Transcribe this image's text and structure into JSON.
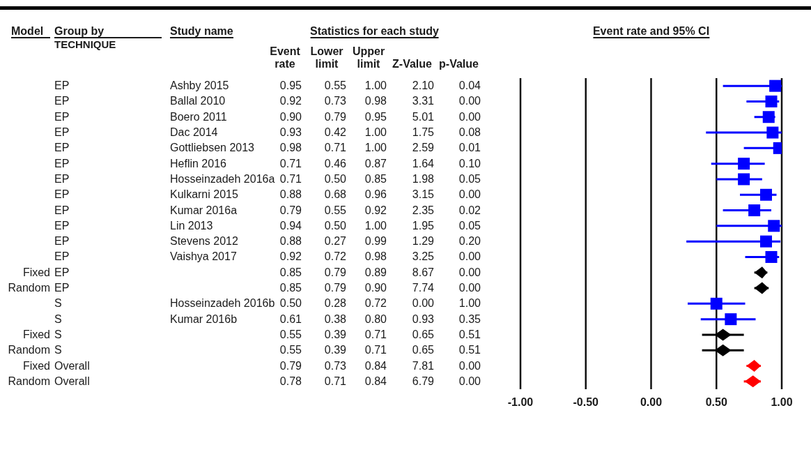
{
  "chart_data": [
    {
      "type": "other",
      "title": "Model",
      "categories": [
        null,
        null,
        null,
        null,
        null,
        null,
        null,
        null,
        null,
        null,
        null,
        null,
        "Fixed",
        "Random",
        null,
        null,
        "Fixed",
        "Random",
        "Fixed",
        "Random"
      ]
    },
    {
      "type": "heatmap",
      "title": "Statistics for each study",
      "ylabel": "Study name",
      "y2label": "Group by\nTECHNIQUE",
      "data_labels": true,
      "categories": [
        "Event\nrate",
        "Lower\nlimit",
        "Upper\nlimit",
        "Z-Value",
        "p-Value"
      ],
      "y_categories": [
        "Ashby 2015",
        "Ballal 2010",
        "Boero 2011",
        "Dac 2014",
        "Gottliebsen 2013",
        "Heflin 2016",
        "Hosseinzadeh 2016a",
        "Kulkarni 2015",
        "Kumar 2016a",
        "Lin 2013",
        "Stevens 2012",
        "Vaishya 2017",
        null,
        null,
        "Hosseinzadeh 2016b",
        "Kumar 2016b",
        null,
        null,
        null,
        null
      ],
      "y2_categories": [
        "EP",
        "EP",
        "EP",
        "EP",
        "EP",
        "EP",
        "EP",
        "EP",
        "EP",
        "EP",
        "EP",
        "EP",
        "EP",
        "EP",
        "S",
        "S",
        "S",
        "S",
        "Overall",
        "Overall"
      ],
      "cells": [
        [
          0.95,
          0.55,
          1.0,
          2.1,
          0.04
        ],
        [
          0.92,
          0.73,
          0.98,
          3.31,
          0.0
        ],
        [
          0.9,
          0.79,
          0.95,
          5.01,
          0.0
        ],
        [
          0.93,
          0.42,
          1.0,
          1.75,
          0.08
        ],
        [
          0.98,
          0.71,
          1.0,
          2.59,
          0.01
        ],
        [
          0.71,
          0.46,
          0.87,
          1.64,
          0.1
        ],
        [
          0.71,
          0.5,
          0.85,
          1.98,
          0.05
        ],
        [
          0.88,
          0.68,
          0.96,
          3.15,
          0.0
        ],
        [
          0.79,
          0.55,
          0.92,
          2.35,
          0.02
        ],
        [
          0.94,
          0.5,
          1.0,
          1.95,
          0.05
        ],
        [
          0.88,
          0.27,
          0.99,
          1.29,
          0.2
        ],
        [
          0.92,
          0.72,
          0.98,
          3.25,
          0.0
        ],
        [
          0.85,
          0.79,
          0.89,
          8.67,
          0.0
        ],
        [
          0.85,
          0.79,
          0.9,
          7.74,
          0.0
        ],
        [
          0.5,
          0.28,
          0.72,
          0.0,
          1.0
        ],
        [
          0.61,
          0.38,
          0.8,
          0.93,
          0.35
        ],
        [
          0.55,
          0.39,
          0.71,
          0.65,
          0.51
        ],
        [
          0.55,
          0.39,
          0.71,
          0.65,
          0.51
        ],
        [
          0.79,
          0.73,
          0.84,
          7.81,
          0.0
        ],
        [
          0.78,
          0.71,
          0.84,
          6.79,
          0.0
        ]
      ],
      "cell_labels": [
        [
          "0.95",
          "0.55",
          "1.00",
          "2.10",
          "0.04"
        ],
        [
          "0.92",
          "0.73",
          "0.98",
          "3.31",
          "0.00"
        ],
        [
          "0.90",
          "0.79",
          "0.95",
          "5.01",
          "0.00"
        ],
        [
          "0.93",
          "0.42",
          "1.00",
          "1.75",
          "0.08"
        ],
        [
          "0.98",
          "0.71",
          "1.00",
          "2.59",
          "0.01"
        ],
        [
          "0.71",
          "0.46",
          "0.87",
          "1.64",
          "0.10"
        ],
        [
          "0.71",
          "0.50",
          "0.85",
          "1.98",
          "0.05"
        ],
        [
          "0.88",
          "0.68",
          "0.96",
          "3.15",
          "0.00"
        ],
        [
          "0.79",
          "0.55",
          "0.92",
          "2.35",
          "0.02"
        ],
        [
          "0.94",
          "0.50",
          "1.00",
          "1.95",
          "0.05"
        ],
        [
          "0.88",
          "0.27",
          "0.99",
          "1.29",
          "0.20"
        ],
        [
          "0.92",
          "0.72",
          "0.98",
          "3.25",
          "0.00"
        ],
        [
          "0.85",
          "0.79",
          "0.89",
          "8.67",
          "0.00"
        ],
        [
          "0.85",
          "0.79",
          "0.90",
          "7.74",
          "0.00"
        ],
        [
          "0.50",
          "0.28",
          "0.72",
          "0.00",
          "1.00"
        ],
        [
          "0.61",
          "0.38",
          "0.80",
          "0.93",
          "0.35"
        ],
        [
          "0.55",
          "0.39",
          "0.71",
          "0.65",
          "0.51"
        ],
        [
          "0.55",
          "0.39",
          "0.71",
          "0.65",
          "0.51"
        ],
        [
          "0.79",
          "0.73",
          "0.84",
          "7.81",
          "0.00"
        ],
        [
          "0.78",
          "0.71",
          "0.84",
          "6.79",
          "0.00"
        ]
      ]
    },
    {
      "type": "scatter",
      "title": "Event rate and 95% CI",
      "orientation": "horizontal",
      "categories": [
        null,
        null,
        null,
        null,
        null,
        null,
        null,
        null,
        null,
        null,
        null,
        null,
        null,
        null,
        null,
        null,
        null,
        null,
        null,
        null
      ],
      "series": [
        {
          "color": "#0000ff",
          "marker": "square",
          "values": [
            0.95,
            0.92,
            0.9,
            0.93,
            0.98,
            0.71,
            0.71,
            0.88,
            0.79,
            0.94,
            0.88,
            0.92,
            null,
            null,
            0.5,
            0.61,
            null,
            null,
            null,
            null
          ],
          "errors": [
            [
              0.55,
              1.0
            ],
            [
              0.73,
              0.98
            ],
            [
              0.79,
              0.95
            ],
            [
              0.42,
              1.0
            ],
            [
              0.71,
              1.0
            ],
            [
              0.46,
              0.87
            ],
            [
              0.5,
              0.85
            ],
            [
              0.68,
              0.96
            ],
            [
              0.55,
              0.92
            ],
            [
              0.5,
              1.0
            ],
            [
              0.27,
              0.99
            ],
            [
              0.72,
              0.98
            ],
            null,
            null,
            [
              0.28,
              0.72
            ],
            [
              0.38,
              0.8
            ],
            null,
            null,
            null,
            null
          ]
        },
        {
          "color": "#000000",
          "marker": "diamond",
          "values": [
            null,
            null,
            null,
            null,
            null,
            null,
            null,
            null,
            null,
            null,
            null,
            null,
            0.85,
            0.85,
            null,
            null,
            0.55,
            0.55,
            null,
            null
          ],
          "errors": [
            null,
            null,
            null,
            null,
            null,
            null,
            null,
            null,
            null,
            null,
            null,
            null,
            [
              0.79,
              0.89
            ],
            [
              0.79,
              0.9
            ],
            null,
            null,
            [
              0.39,
              0.71
            ],
            [
              0.39,
              0.71
            ],
            null,
            null
          ]
        },
        {
          "color": "#ff0000",
          "marker": "diamond",
          "values": [
            null,
            null,
            null,
            null,
            null,
            null,
            null,
            null,
            null,
            null,
            null,
            null,
            null,
            null,
            null,
            null,
            null,
            null,
            0.79,
            0.78
          ],
          "errors": [
            null,
            null,
            null,
            null,
            null,
            null,
            null,
            null,
            null,
            null,
            null,
            null,
            null,
            null,
            null,
            null,
            null,
            null,
            [
              0.73,
              0.84
            ],
            [
              0.71,
              0.84
            ]
          ]
        }
      ],
      "xlim": [
        -1,
        1
      ],
      "xticks": [
        {
          "value": -1,
          "label": "-1.00"
        },
        {
          "value": -0.5,
          "label": "-0.50"
        },
        {
          "value": 0,
          "label": "0.00"
        },
        {
          "value": 0.5,
          "label": "0.50"
        },
        {
          "value": 1,
          "label": "1.00"
        }
      ],
      "grid": "x"
    }
  ]
}
